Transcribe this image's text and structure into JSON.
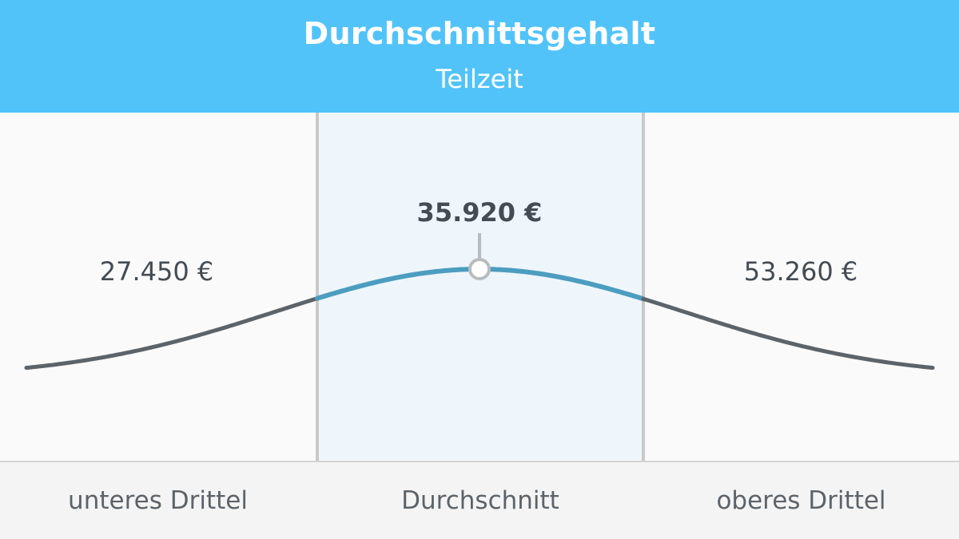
{
  "chart_data": {
    "type": "area",
    "title": "Durchschnittsgehalt",
    "subtitle": "Teilzeit",
    "categories": [
      "unteres Drittel",
      "Durchschnitt",
      "oberes Drittel"
    ],
    "values": [
      27450,
      35920,
      53260
    ],
    "value_labels": [
      "27.450 €",
      "35.920 €",
      "53.260 €"
    ],
    "highlighted_category": "Durchschnitt",
    "xlabel": "",
    "ylabel": "",
    "grid": false,
    "legend": "none"
  },
  "colors": {
    "header": "#52c3f9",
    "highlight_band": "#eef6fb",
    "curve": "#5c6369",
    "curve_highlight": "#4c9dc0",
    "divider": "#c9c9c9",
    "text": "#444b52"
  }
}
